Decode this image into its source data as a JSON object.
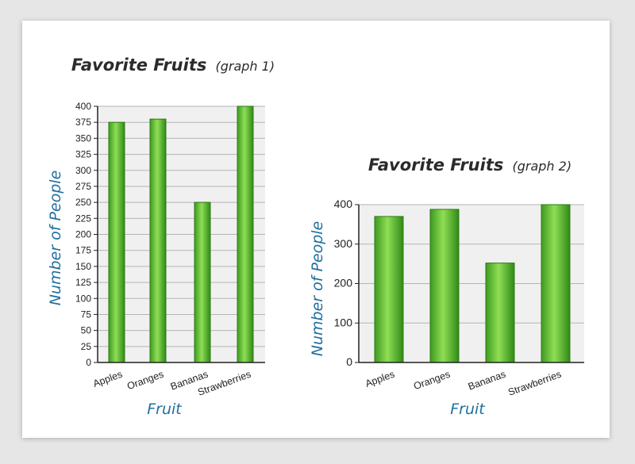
{
  "chart_data": [
    {
      "type": "bar",
      "title": "Favorite Fruits",
      "subtitle": "(graph 1)",
      "xlabel": "Fruit",
      "ylabel": "Number of People",
      "categories": [
        "Apples",
        "Oranges",
        "Bananas",
        "Strawberries"
      ],
      "values": [
        375,
        380,
        250,
        400
      ],
      "ylim": [
        0,
        400
      ],
      "yticks": [
        0,
        25,
        50,
        75,
        100,
        125,
        150,
        175,
        200,
        225,
        250,
        275,
        300,
        325,
        350,
        375,
        400
      ],
      "grid": true,
      "bar_color": "#6cc23a"
    },
    {
      "type": "bar",
      "title": "Favorite Fruits",
      "subtitle": "(graph 2)",
      "xlabel": "Fruit",
      "ylabel": "Number of People",
      "categories": [
        "Apples",
        "Oranges",
        "Bananas",
        "Strawberries"
      ],
      "values": [
        370,
        388,
        252,
        400
      ],
      "ylim": [
        0,
        400
      ],
      "yticks": [
        0,
        100,
        200,
        300,
        400
      ],
      "grid": true,
      "bar_color": "#6cc23a"
    }
  ]
}
